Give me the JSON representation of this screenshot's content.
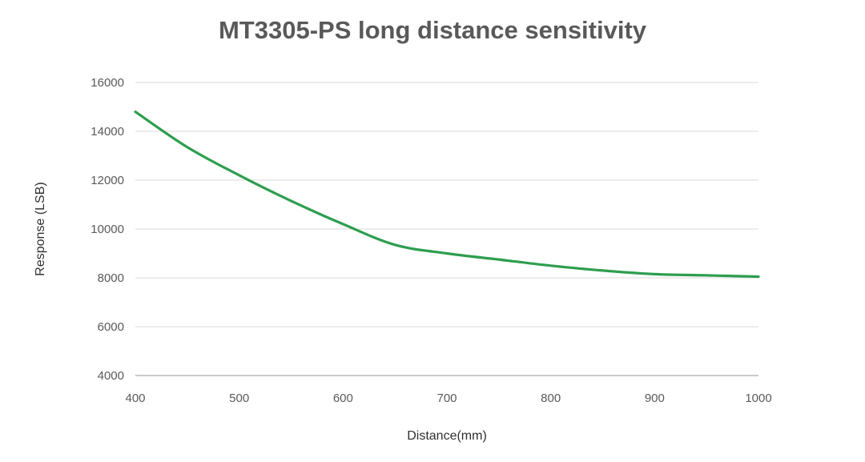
{
  "title": "MT3305-PS long distance sensitivity",
  "chart_data": {
    "type": "line",
    "title": "MT3305-PS long distance sensitivity",
    "xlabel": "Distance(mm)",
    "ylabel": "Response (LSB)",
    "x": [
      400,
      450,
      500,
      550,
      600,
      650,
      700,
      750,
      800,
      850,
      900,
      950,
      1000
    ],
    "series": [
      {
        "name": "Response",
        "values": [
          14800,
          13350,
          12200,
          11150,
          10200,
          9350,
          9000,
          8750,
          8500,
          8300,
          8150,
          8100,
          8050
        ]
      }
    ],
    "xlim": [
      400,
      1000
    ],
    "ylim": [
      4000,
      16000
    ],
    "x_ticks": [
      400,
      500,
      600,
      700,
      800,
      900,
      1000
    ],
    "y_ticks": [
      4000,
      6000,
      8000,
      10000,
      12000,
      14000,
      16000
    ],
    "grid": "horizontal-y-only",
    "legend": "none",
    "smooth": true
  },
  "colors": {
    "background": "#ffffff",
    "title_text": "#595959",
    "tick_text": "#595959",
    "axis_title_text": "#303030",
    "gridline": "#d9d9d9",
    "axis_line": "#b7b7b7",
    "line": "#2e9e4f"
  }
}
